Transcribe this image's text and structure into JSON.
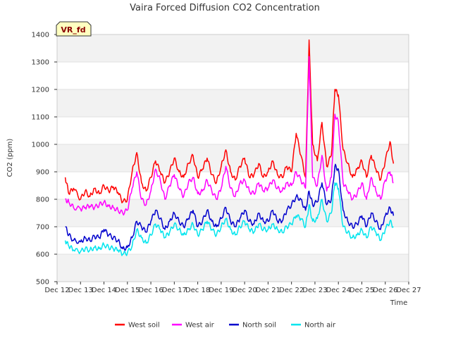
{
  "chart_data": {
    "type": "line",
    "title": "Vaira Forced Diffusion CO2 Concentration",
    "badge": "VR_fd",
    "xlabel": "Time",
    "ylabel": "CO2 (ppm)",
    "ylim": [
      500,
      1400
    ],
    "yticks": [
      500,
      600,
      700,
      800,
      900,
      1000,
      1100,
      1200,
      1300,
      1400
    ],
    "xlim": [
      12,
      27
    ],
    "xticks": [
      {
        "v": 12,
        "label": "Dec 12"
      },
      {
        "v": 13,
        "label": "Dec 13"
      },
      {
        "v": 14,
        "label": "Dec 14"
      },
      {
        "v": 15,
        "label": "Dec 15"
      },
      {
        "v": 16,
        "label": "Dec 16"
      },
      {
        "v": 17,
        "label": "Dec 17"
      },
      {
        "v": 18,
        "label": "Dec 18"
      },
      {
        "v": 19,
        "label": "Dec 19"
      },
      {
        "v": 20,
        "label": "Dec 20"
      },
      {
        "v": 21,
        "label": "Dec 21"
      },
      {
        "v": 22,
        "label": "Dec 22"
      },
      {
        "v": 23,
        "label": "Dec 23"
      },
      {
        "v": 24,
        "label": "Dec 24"
      },
      {
        "v": 25,
        "label": "Dec 25"
      },
      {
        "v": 26,
        "label": "Dec 26"
      },
      {
        "v": 27,
        "label": "Dec 27"
      }
    ],
    "grid": true,
    "legend_position": "bottom",
    "series": [
      {
        "name": "West soil",
        "color": "#ff0000",
        "points": [
          [
            12.35,
            880
          ],
          [
            12.5,
            820
          ],
          [
            12.7,
            840
          ],
          [
            13.0,
            800
          ],
          [
            13.2,
            830
          ],
          [
            13.4,
            810
          ],
          [
            13.6,
            840
          ],
          [
            13.8,
            820
          ],
          [
            14.0,
            850
          ],
          [
            14.2,
            830
          ],
          [
            14.4,
            845
          ],
          [
            14.6,
            825
          ],
          [
            14.8,
            790
          ],
          [
            15.0,
            800
          ],
          [
            15.2,
            900
          ],
          [
            15.4,
            970
          ],
          [
            15.6,
            860
          ],
          [
            15.8,
            830
          ],
          [
            16.0,
            880
          ],
          [
            16.2,
            940
          ],
          [
            16.4,
            900
          ],
          [
            16.6,
            860
          ],
          [
            16.8,
            900
          ],
          [
            17.0,
            950
          ],
          [
            17.2,
            900
          ],
          [
            17.4,
            880
          ],
          [
            17.6,
            930
          ],
          [
            17.8,
            960
          ],
          [
            18.0,
            880
          ],
          [
            18.2,
            910
          ],
          [
            18.4,
            950
          ],
          [
            18.6,
            890
          ],
          [
            18.8,
            860
          ],
          [
            19.0,
            920
          ],
          [
            19.2,
            980
          ],
          [
            19.4,
            900
          ],
          [
            19.6,
            870
          ],
          [
            19.8,
            920
          ],
          [
            20.0,
            950
          ],
          [
            20.2,
            880
          ],
          [
            20.4,
            890
          ],
          [
            20.6,
            930
          ],
          [
            20.8,
            880
          ],
          [
            21.0,
            900
          ],
          [
            21.2,
            940
          ],
          [
            21.4,
            890
          ],
          [
            21.6,
            880
          ],
          [
            21.8,
            920
          ],
          [
            22.0,
            900
          ],
          [
            22.2,
            1040
          ],
          [
            22.4,
            960
          ],
          [
            22.6,
            880
          ],
          [
            22.75,
            1380
          ],
          [
            22.9,
            1000
          ],
          [
            23.1,
            940
          ],
          [
            23.3,
            1080
          ],
          [
            23.5,
            920
          ],
          [
            23.7,
            960
          ],
          [
            23.85,
            1200
          ],
          [
            24.0,
            1180
          ],
          [
            24.2,
            980
          ],
          [
            24.4,
            930
          ],
          [
            24.6,
            880
          ],
          [
            24.8,
            910
          ],
          [
            25.0,
            940
          ],
          [
            25.2,
            880
          ],
          [
            25.4,
            960
          ],
          [
            25.6,
            910
          ],
          [
            25.8,
            870
          ],
          [
            26.0,
            940
          ],
          [
            26.2,
            1010
          ],
          [
            26.35,
            930
          ]
        ]
      },
      {
        "name": "West air",
        "color": "#ff00ff",
        "points": [
          [
            12.35,
            800
          ],
          [
            12.5,
            790
          ],
          [
            12.7,
            770
          ],
          [
            13.0,
            765
          ],
          [
            13.2,
            770
          ],
          [
            13.4,
            775
          ],
          [
            13.6,
            770
          ],
          [
            13.8,
            780
          ],
          [
            14.0,
            790
          ],
          [
            14.2,
            775
          ],
          [
            14.4,
            770
          ],
          [
            14.6,
            760
          ],
          [
            14.8,
            750
          ],
          [
            15.0,
            760
          ],
          [
            15.2,
            840
          ],
          [
            15.4,
            900
          ],
          [
            15.6,
            800
          ],
          [
            15.8,
            780
          ],
          [
            16.0,
            830
          ],
          [
            16.2,
            910
          ],
          [
            16.4,
            870
          ],
          [
            16.6,
            800
          ],
          [
            16.8,
            850
          ],
          [
            17.0,
            890
          ],
          [
            17.2,
            840
          ],
          [
            17.4,
            810
          ],
          [
            17.6,
            860
          ],
          [
            17.8,
            880
          ],
          [
            18.0,
            820
          ],
          [
            18.2,
            830
          ],
          [
            18.4,
            870
          ],
          [
            18.6,
            830
          ],
          [
            18.8,
            800
          ],
          [
            19.0,
            840
          ],
          [
            19.2,
            920
          ],
          [
            19.4,
            840
          ],
          [
            19.6,
            810
          ],
          [
            19.8,
            860
          ],
          [
            20.0,
            870
          ],
          [
            20.2,
            830
          ],
          [
            20.4,
            820
          ],
          [
            20.6,
            860
          ],
          [
            20.8,
            830
          ],
          [
            21.0,
            840
          ],
          [
            21.2,
            870
          ],
          [
            21.4,
            840
          ],
          [
            21.6,
            830
          ],
          [
            21.8,
            860
          ],
          [
            22.0,
            850
          ],
          [
            22.2,
            900
          ],
          [
            22.4,
            870
          ],
          [
            22.6,
            840
          ],
          [
            22.75,
            1320
          ],
          [
            22.9,
            880
          ],
          [
            23.1,
            850
          ],
          [
            23.3,
            960
          ],
          [
            23.5,
            830
          ],
          [
            23.7,
            880
          ],
          [
            23.85,
            1110
          ],
          [
            24.0,
            1080
          ],
          [
            24.2,
            860
          ],
          [
            24.4,
            830
          ],
          [
            24.6,
            800
          ],
          [
            24.8,
            820
          ],
          [
            25.0,
            860
          ],
          [
            25.2,
            800
          ],
          [
            25.4,
            880
          ],
          [
            25.6,
            830
          ],
          [
            25.8,
            800
          ],
          [
            26.0,
            870
          ],
          [
            26.2,
            900
          ],
          [
            26.35,
            860
          ]
        ]
      },
      {
        "name": "North soil",
        "color": "#0000cd",
        "points": [
          [
            12.35,
            700
          ],
          [
            12.5,
            670
          ],
          [
            12.7,
            650
          ],
          [
            13.0,
            645
          ],
          [
            13.2,
            660
          ],
          [
            13.4,
            650
          ],
          [
            13.6,
            665
          ],
          [
            13.8,
            660
          ],
          [
            14.0,
            690
          ],
          [
            14.2,
            670
          ],
          [
            14.4,
            660
          ],
          [
            14.6,
            650
          ],
          [
            14.8,
            620
          ],
          [
            15.0,
            625
          ],
          [
            15.2,
            660
          ],
          [
            15.4,
            720
          ],
          [
            15.6,
            700
          ],
          [
            15.8,
            680
          ],
          [
            16.0,
            720
          ],
          [
            16.2,
            760
          ],
          [
            16.4,
            730
          ],
          [
            16.6,
            690
          ],
          [
            16.8,
            720
          ],
          [
            17.0,
            750
          ],
          [
            17.2,
            720
          ],
          [
            17.4,
            700
          ],
          [
            17.6,
            730
          ],
          [
            17.8,
            760
          ],
          [
            18.0,
            700
          ],
          [
            18.2,
            720
          ],
          [
            18.4,
            760
          ],
          [
            18.6,
            720
          ],
          [
            18.8,
            700
          ],
          [
            19.0,
            730
          ],
          [
            19.2,
            770
          ],
          [
            19.4,
            720
          ],
          [
            19.6,
            700
          ],
          [
            19.8,
            730
          ],
          [
            20.0,
            760
          ],
          [
            20.2,
            720
          ],
          [
            20.4,
            710
          ],
          [
            20.6,
            750
          ],
          [
            20.8,
            720
          ],
          [
            21.0,
            720
          ],
          [
            21.2,
            760
          ],
          [
            21.4,
            720
          ],
          [
            21.6,
            720
          ],
          [
            21.8,
            760
          ],
          [
            22.0,
            780
          ],
          [
            22.2,
            810
          ],
          [
            22.4,
            800
          ],
          [
            22.6,
            760
          ],
          [
            22.75,
            830
          ],
          [
            22.9,
            780
          ],
          [
            23.1,
            790
          ],
          [
            23.3,
            860
          ],
          [
            23.5,
            780
          ],
          [
            23.7,
            800
          ],
          [
            23.85,
            920
          ],
          [
            24.0,
            910
          ],
          [
            24.2,
            760
          ],
          [
            24.4,
            720
          ],
          [
            24.6,
            700
          ],
          [
            24.8,
            710
          ],
          [
            25.0,
            740
          ],
          [
            25.2,
            700
          ],
          [
            25.4,
            750
          ],
          [
            25.6,
            720
          ],
          [
            25.8,
            690
          ],
          [
            26.0,
            740
          ],
          [
            26.2,
            770
          ],
          [
            26.35,
            740
          ]
        ]
      },
      {
        "name": "North air",
        "color": "#00e5ee",
        "points": [
          [
            12.35,
            650
          ],
          [
            12.5,
            630
          ],
          [
            12.7,
            615
          ],
          [
            13.0,
            610
          ],
          [
            13.2,
            620
          ],
          [
            13.4,
            615
          ],
          [
            13.6,
            625
          ],
          [
            13.8,
            620
          ],
          [
            14.0,
            635
          ],
          [
            14.2,
            625
          ],
          [
            14.4,
            620
          ],
          [
            14.6,
            615
          ],
          [
            14.8,
            600
          ],
          [
            15.0,
            605
          ],
          [
            15.2,
            630
          ],
          [
            15.4,
            690
          ],
          [
            15.6,
            660
          ],
          [
            15.8,
            640
          ],
          [
            16.0,
            670
          ],
          [
            16.2,
            710
          ],
          [
            16.4,
            690
          ],
          [
            16.6,
            660
          ],
          [
            16.8,
            680
          ],
          [
            17.0,
            710
          ],
          [
            17.2,
            690
          ],
          [
            17.4,
            670
          ],
          [
            17.6,
            690
          ],
          [
            17.8,
            710
          ],
          [
            18.0,
            670
          ],
          [
            18.2,
            690
          ],
          [
            18.4,
            720
          ],
          [
            18.6,
            690
          ],
          [
            18.8,
            670
          ],
          [
            19.0,
            700
          ],
          [
            19.2,
            730
          ],
          [
            19.4,
            690
          ],
          [
            19.6,
            670
          ],
          [
            19.8,
            700
          ],
          [
            20.0,
            720
          ],
          [
            20.2,
            690
          ],
          [
            20.4,
            680
          ],
          [
            20.6,
            710
          ],
          [
            20.8,
            690
          ],
          [
            21.0,
            690
          ],
          [
            21.2,
            710
          ],
          [
            21.4,
            690
          ],
          [
            21.6,
            680
          ],
          [
            21.8,
            700
          ],
          [
            22.0,
            710
          ],
          [
            22.2,
            740
          ],
          [
            22.4,
            730
          ],
          [
            22.6,
            700
          ],
          [
            22.75,
            780
          ],
          [
            22.9,
            720
          ],
          [
            23.1,
            730
          ],
          [
            23.3,
            800
          ],
          [
            23.5,
            720
          ],
          [
            23.7,
            750
          ],
          [
            23.85,
            860
          ],
          [
            24.0,
            840
          ],
          [
            24.2,
            700
          ],
          [
            24.4,
            680
          ],
          [
            24.6,
            660
          ],
          [
            24.8,
            670
          ],
          [
            25.0,
            690
          ],
          [
            25.2,
            660
          ],
          [
            25.4,
            700
          ],
          [
            25.6,
            680
          ],
          [
            25.8,
            650
          ],
          [
            26.0,
            690
          ],
          [
            26.2,
            720
          ],
          [
            26.35,
            700
          ]
        ]
      }
    ]
  }
}
